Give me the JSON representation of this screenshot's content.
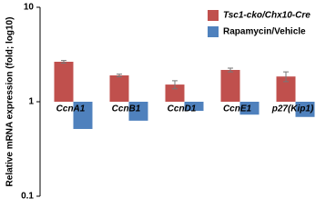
{
  "chart_data": {
    "type": "bar",
    "ylabel": "Relative mRNA expression (fold; log10)",
    "categories": [
      "CcnA1",
      "CcnB1",
      "CcnD1",
      "CcnE1",
      "p27(Kip1)"
    ],
    "series": [
      {
        "name": "Tsc1-cko/Chx10-Cre",
        "color": "#c0504d",
        "values": [
          2.65,
          1.9,
          1.52,
          2.17,
          1.85
        ],
        "error": [
          0.08,
          0.06,
          0.15,
          0.1,
          0.22
        ]
      },
      {
        "name": "Rapamycin/Vehicle",
        "color": "#4f81bd",
        "values": [
          0.515,
          0.63,
          0.8,
          0.73,
          0.69
        ]
      }
    ],
    "log_scale": true,
    "baseline": 1,
    "ylim": [
      0.1,
      10
    ],
    "yticks": [
      0.1,
      1,
      10
    ],
    "legend": "top-right"
  }
}
